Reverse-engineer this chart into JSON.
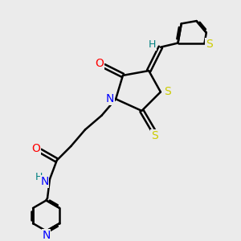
{
  "background_color": "#ebebeb",
  "bond_color": "#000000",
  "N_color": "#0000ff",
  "O_color": "#ff0000",
  "S_color": "#cccc00",
  "H_color": "#008080",
  "figsize": [
    3.0,
    3.0
  ],
  "dpi": 100,
  "xlim": [
    0,
    10
  ],
  "ylim": [
    0,
    10
  ]
}
